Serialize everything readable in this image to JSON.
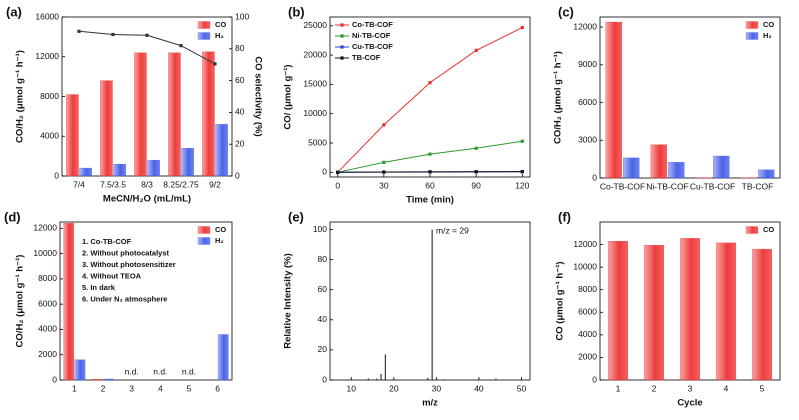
{
  "chart_data": [
    {
      "label": "(a)",
      "type": "bar",
      "categories": [
        "7/4",
        "7.5/3.5",
        "8/3",
        "8.25/2.75",
        "9/2"
      ],
      "x_label": "MeCN/H₂O (mL/mL)",
      "y_label": "CO/H₂ (μmol g⁻¹ h⁻¹)",
      "y2_label": "CO selectivity (%)",
      "ylim": [
        0,
        16000
      ],
      "yticks": [
        0,
        4000,
        8000,
        12000,
        16000
      ],
      "y2lim": [
        0,
        100
      ],
      "y2ticks": [
        0,
        20,
        40,
        60,
        80,
        100
      ],
      "legend": "upper right",
      "series": [
        {
          "name": "CO",
          "color": "#ee3b3b",
          "values": [
            8200,
            9600,
            12400,
            12400,
            12500
          ]
        },
        {
          "name": "H₂",
          "color": "#4a63e8",
          "values": [
            800,
            1200,
            1600,
            2800,
            5200
          ]
        },
        {
          "type": "line",
          "axis": "y2",
          "color": "#333333",
          "values": [
            91,
            89,
            88.5,
            82,
            70.5
          ]
        }
      ]
    },
    {
      "label": "(b)",
      "type": "line",
      "x": [
        0,
        30,
        60,
        90,
        120
      ],
      "xlim": [
        -5,
        125
      ],
      "xticks": [
        0,
        30,
        60,
        90,
        120
      ],
      "ylim": [
        -800,
        26500
      ],
      "yticks": [
        0,
        5000,
        10000,
        15000,
        20000,
        25000
      ],
      "x_label": "Time (min)",
      "y_label": "CO/ (μmol g⁻¹)",
      "legend": "upper left",
      "series": [
        {
          "name": "Co-TB-COF",
          "color": "#e8312f",
          "values": [
            0,
            8100,
            15300,
            20800,
            24700
          ]
        },
        {
          "name": "Ni-TB-COF",
          "color": "#2e9a2e",
          "values": [
            0,
            1700,
            3100,
            4100,
            5300
          ]
        },
        {
          "name": "Cu-TB-COF",
          "color": "#2a3fd6",
          "values": [
            0,
            60,
            90,
            110,
            130
          ]
        },
        {
          "name": "TB-COF",
          "color": "#111111",
          "values": [
            0,
            40,
            60,
            80,
            100
          ]
        }
      ]
    },
    {
      "label": "(c)",
      "type": "bar",
      "categories": [
        "Co-TB-COF",
        "Ni-TB-COF",
        "Cu-TB-COF",
        "TB-COF"
      ],
      "y_label": "CO/H₂ (μmol g⁻¹ h⁻¹)",
      "ylim": [
        0,
        12800
      ],
      "yticks": [
        0,
        3000,
        6000,
        9000,
        12000
      ],
      "legend": "upper right",
      "series": [
        {
          "name": "CO",
          "color": "#ee3b3b",
          "values": [
            12400,
            2650,
            30,
            20
          ]
        },
        {
          "name": "H₂",
          "color": "#4a63e8",
          "values": [
            1600,
            1250,
            1750,
            650
          ]
        }
      ]
    },
    {
      "label": "(d)",
      "type": "bar",
      "categories": [
        "1",
        "2",
        "3",
        "4",
        "5",
        "6"
      ],
      "y_label": "CO/H₂ (μmol g⁻¹ h⁻¹)",
      "ylim": [
        0,
        12500
      ],
      "yticks": [
        0,
        2000,
        4000,
        6000,
        8000,
        10000,
        12000
      ],
      "legend": "upper right",
      "notes": [
        "1. Co-TB-COF",
        "2. Without photocatalyst",
        "3. Without photosensitizer",
        "4. Without TEOA",
        "5. In dark",
        "6. Under N₂ atmosphere"
      ],
      "annotations": [
        {
          "category": "3",
          "text": "n.d."
        },
        {
          "category": "4",
          "text": "n.d."
        },
        {
          "category": "5",
          "text": "n.d."
        }
      ],
      "series": [
        {
          "name": "CO",
          "color": "#ee3b3b",
          "values": [
            12400,
            60,
            null,
            null,
            null,
            0
          ]
        },
        {
          "name": "H₂",
          "color": "#4a63e8",
          "values": [
            1600,
            80,
            null,
            null,
            null,
            3600
          ]
        }
      ]
    },
    {
      "label": "(e)",
      "type": "stem",
      "x": [
        14,
        16,
        17,
        18,
        28,
        29,
        32,
        44
      ],
      "values": [
        1,
        1,
        4,
        17,
        1.5,
        100,
        0.5,
        1
      ],
      "color": "#111111",
      "xlim": [
        5,
        52
      ],
      "xticks": [
        10,
        20,
        30,
        40,
        50
      ],
      "ylim": [
        0,
        105
      ],
      "yticks": [
        0,
        20,
        40,
        60,
        80,
        100
      ],
      "x_label": "m/z",
      "y_label": "Relative Intensity (%)",
      "annotation": "m/z = 29"
    },
    {
      "label": "(f)",
      "type": "bar",
      "categories": [
        "1",
        "2",
        "3",
        "4",
        "5"
      ],
      "x_label": "Cycle",
      "y_label": "CO (μmol g⁻¹ h⁻¹)",
      "ylim": [
        0,
        14000
      ],
      "yticks": [
        0,
        2000,
        4000,
        6000,
        8000,
        10000,
        12000
      ],
      "legend": "upper right",
      "series": [
        {
          "name": "CO",
          "color": "#ee3b3b",
          "values": [
            12300,
            11950,
            12550,
            12150,
            11600
          ]
        }
      ]
    }
  ]
}
